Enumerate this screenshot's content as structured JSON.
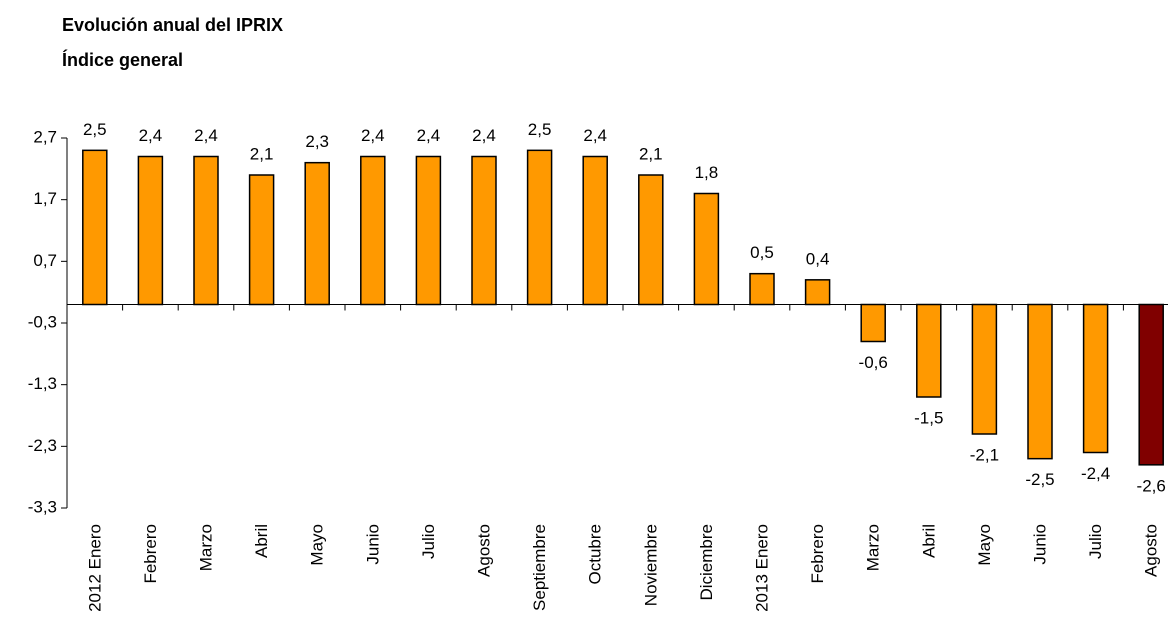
{
  "chart_data": {
    "type": "bar",
    "title": "Evolución anual del IPRIX",
    "subtitle": "Índice general",
    "categories": [
      "2012 Enero",
      "Febrero",
      "Marzo",
      "Abril",
      "Mayo",
      "Junio",
      "Julio",
      "Agosto",
      "Septiembre",
      "Octubre",
      "Noviembre",
      "Diciembre",
      "2013 Enero",
      "Febrero",
      "Marzo",
      "Abril",
      "Mayo",
      "Junio",
      "Julio",
      "Agosto"
    ],
    "values": [
      2.5,
      2.4,
      2.4,
      2.1,
      2.3,
      2.4,
      2.4,
      2.4,
      2.5,
      2.4,
      2.1,
      1.8,
      0.5,
      0.4,
      -0.6,
      -1.5,
      -2.1,
      -2.5,
      -2.4,
      -2.6
    ],
    "value_labels": [
      "2,5",
      "2,4",
      "2,4",
      "2,1",
      "2,3",
      "2,4",
      "2,4",
      "2,4",
      "2,5",
      "2,4",
      "2,1",
      "1,8",
      "0,5",
      "0,4",
      "-0,6",
      "-1,5",
      "-2,1",
      "-2,5",
      "-2,4",
      "-2,6"
    ],
    "colors": [
      "#ff9900",
      "#ff9900",
      "#ff9900",
      "#ff9900",
      "#ff9900",
      "#ff9900",
      "#ff9900",
      "#ff9900",
      "#ff9900",
      "#ff9900",
      "#ff9900",
      "#ff9900",
      "#ff9900",
      "#ff9900",
      "#ff9900",
      "#ff9900",
      "#ff9900",
      "#ff9900",
      "#ff9900",
      "#800000"
    ],
    "ylim": [
      -3.3,
      2.7
    ],
    "yticks": [
      {
        "value": 2.7,
        "label": "2,7"
      },
      {
        "value": 1.7,
        "label": "1,7"
      },
      {
        "value": 0.7,
        "label": "0,7"
      },
      {
        "value": -0.3,
        "label": "-0,3"
      },
      {
        "value": -1.3,
        "label": "-1,3"
      },
      {
        "value": -2.3,
        "label": "-2,3"
      },
      {
        "value": -3.3,
        "label": "-3,3"
      }
    ],
    "grid": false
  }
}
